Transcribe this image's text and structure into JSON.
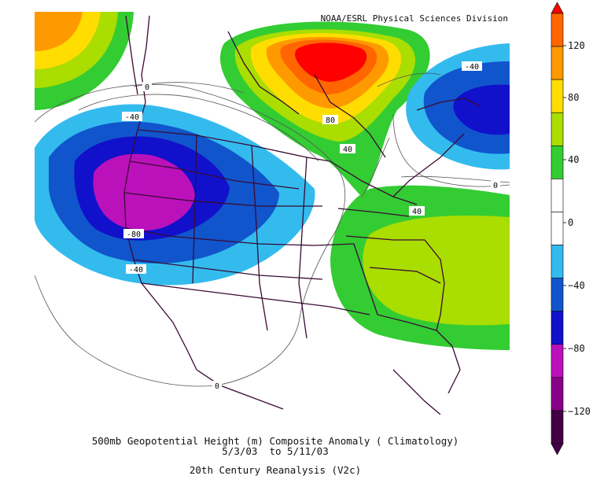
{
  "credit": "NOAA/ESRL Physical Sciences Division",
  "caption": {
    "line1": "500mb Geopotential Height (m) Composite Anomaly ( Climatology)",
    "line2": "5/3/03  to 5/11/03",
    "line3": "20th Century Reanalysis (V2c)"
  },
  "colorbar": {
    "ticks": [
      "120",
      "80",
      "40",
      "0",
      "−40",
      "−80",
      "−120"
    ],
    "colors": [
      "#ff0000",
      "#ff6600",
      "#ff9900",
      "#ffdd00",
      "#aadd00",
      "#33cc33",
      "#ffffff",
      "#ffffff",
      "#33bbee",
      "#1155cc",
      "#1111cc",
      "#bb11bb",
      "#880088",
      "#440044"
    ]
  },
  "contour_labels": {
    "neg40_west": "-40",
    "neg80_west": "-80",
    "neg40_sw": "-40",
    "zero_nw": "0",
    "zero_south": "0",
    "pos80_north": "80",
    "pos40_north": "40",
    "neg40_ne": "-40",
    "zero_east": "0",
    "pos40_east": "40"
  }
}
